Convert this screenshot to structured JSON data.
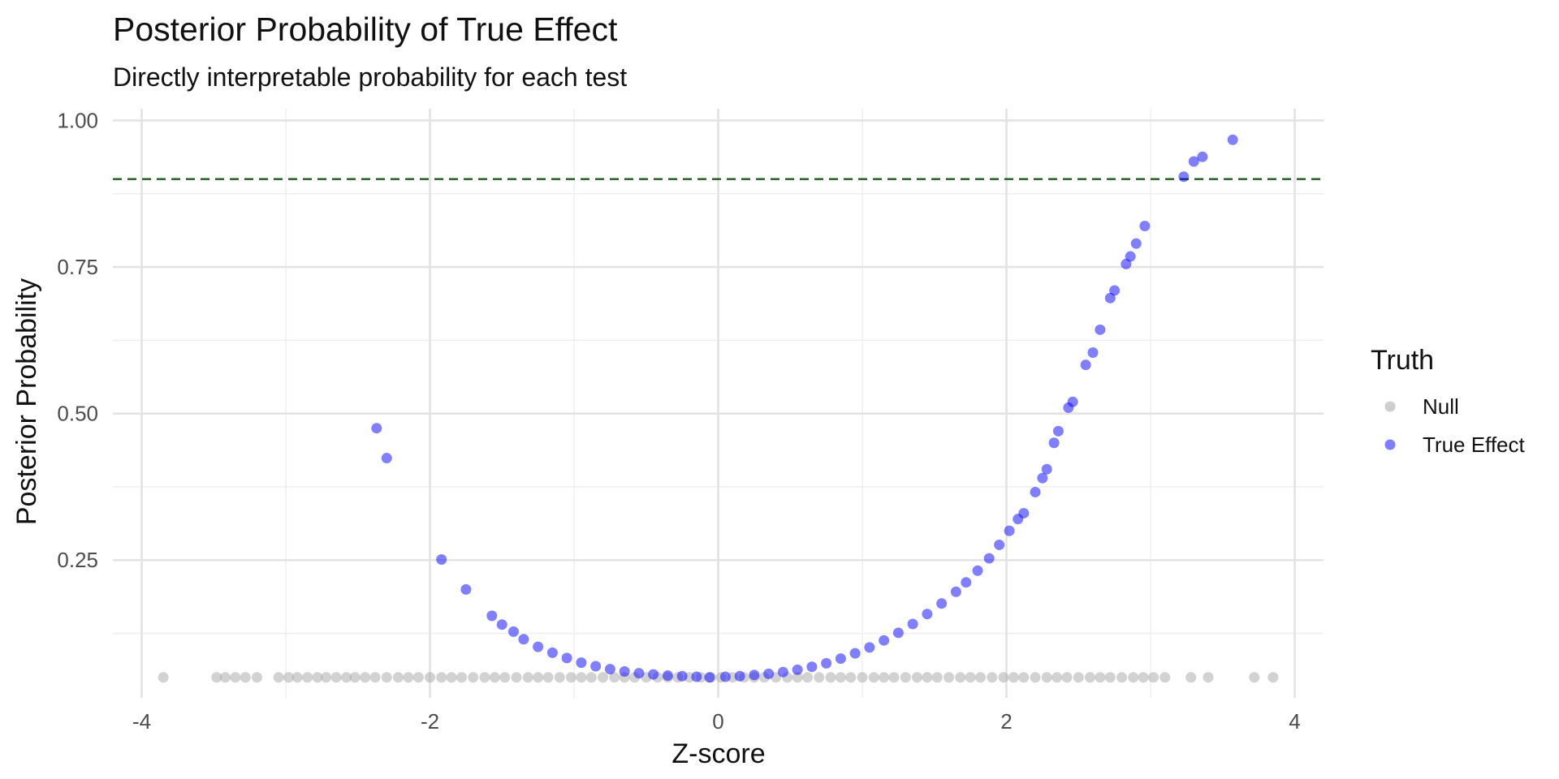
{
  "chart_data": {
    "type": "scatter",
    "title": "Posterior Probability of True Effect",
    "subtitle": "Directly interpretable probability for each test",
    "xlabel": "Z-score",
    "ylabel": "Posterior Probability",
    "xlim": [
      -4.2,
      4.2
    ],
    "ylim": [
      0.015,
      1.02
    ],
    "x_ticks": [
      -4,
      -2,
      0,
      2,
      4
    ],
    "x_tick_labels": [
      "-4",
      "-2",
      "0",
      "2",
      "4"
    ],
    "y_ticks": [
      0.25,
      0.5,
      0.75,
      1.0
    ],
    "y_tick_labels": [
      "0.25",
      "0.50",
      "0.75",
      "1.00"
    ],
    "grid": true,
    "threshold_line": {
      "y": 0.9,
      "style": "dashed",
      "color": "#1a5e1a"
    },
    "legend": {
      "title": "Truth",
      "position": "right",
      "entries": [
        {
          "label": "Null",
          "color": "#a6a6a6"
        },
        {
          "label": "True Effect",
          "color": "#0000ff"
        }
      ]
    },
    "series": [
      {
        "name": "Null",
        "color": "#a6a6a6",
        "x": [
          -3.85,
          -3.48,
          -3.42,
          -3.35,
          -3.28,
          -3.2,
          -3.05,
          -2.98,
          -2.92,
          -2.85,
          -2.78,
          -2.72,
          -2.65,
          -2.58,
          -2.52,
          -2.45,
          -2.38,
          -2.3,
          -2.22,
          -2.15,
          -2.08,
          -2.0,
          -1.92,
          -1.85,
          -1.78,
          -1.7,
          -1.62,
          -1.55,
          -1.48,
          -1.4,
          -1.32,
          -1.25,
          -1.18,
          -1.1,
          -1.02,
          -0.95,
          -0.88,
          -0.8,
          -0.72,
          -0.65,
          -0.58,
          -0.5,
          -0.42,
          -0.35,
          -0.28,
          -0.2,
          -0.12,
          -0.05,
          0.02,
          0.1,
          0.18,
          0.25,
          0.32,
          0.4,
          0.48,
          0.55,
          0.62,
          0.7,
          0.78,
          0.85,
          0.92,
          1.0,
          1.08,
          1.15,
          1.22,
          1.3,
          1.38,
          1.45,
          1.52,
          1.6,
          1.68,
          1.75,
          1.82,
          1.9,
          1.98,
          2.05,
          2.12,
          2.2,
          2.28,
          2.35,
          2.42,
          2.5,
          2.58,
          2.65,
          2.72,
          2.8,
          2.88,
          2.95,
          3.02,
          3.1,
          3.28,
          3.4,
          3.72,
          3.85
        ],
        "y": [
          0.05,
          0.05,
          0.05,
          0.05,
          0.05,
          0.05,
          0.05,
          0.05,
          0.05,
          0.05,
          0.05,
          0.05,
          0.05,
          0.05,
          0.05,
          0.05,
          0.05,
          0.05,
          0.05,
          0.05,
          0.05,
          0.05,
          0.05,
          0.05,
          0.05,
          0.05,
          0.05,
          0.05,
          0.05,
          0.05,
          0.05,
          0.05,
          0.05,
          0.05,
          0.05,
          0.05,
          0.05,
          0.05,
          0.05,
          0.05,
          0.05,
          0.05,
          0.05,
          0.05,
          0.05,
          0.05,
          0.05,
          0.05,
          0.05,
          0.05,
          0.05,
          0.05,
          0.05,
          0.05,
          0.05,
          0.05,
          0.05,
          0.05,
          0.05,
          0.05,
          0.05,
          0.05,
          0.05,
          0.05,
          0.05,
          0.05,
          0.05,
          0.05,
          0.05,
          0.05,
          0.05,
          0.05,
          0.05,
          0.05,
          0.05,
          0.05,
          0.05,
          0.05,
          0.05,
          0.05,
          0.05,
          0.05,
          0.05,
          0.05,
          0.05,
          0.05,
          0.05,
          0.05,
          0.05,
          0.05,
          0.05,
          0.05,
          0.05,
          0.05
        ]
      },
      {
        "name": "True Effect",
        "color": "#0000ff",
        "x": [
          -2.37,
          -2.3,
          -1.92,
          -1.75,
          -1.57,
          -1.5,
          -1.42,
          -1.35,
          -1.25,
          -1.15,
          -1.05,
          -0.95,
          -0.85,
          -0.75,
          -0.65,
          -0.55,
          -0.45,
          -0.35,
          -0.25,
          -0.15,
          -0.06,
          0.05,
          0.15,
          0.25,
          0.35,
          0.45,
          0.55,
          0.65,
          0.75,
          0.85,
          0.95,
          1.05,
          1.15,
          1.25,
          1.35,
          1.45,
          1.55,
          1.65,
          1.72,
          1.8,
          1.88,
          1.95,
          2.02,
          2.08,
          2.12,
          2.2,
          2.25,
          2.28,
          2.33,
          2.36,
          2.43,
          2.46,
          2.55,
          2.6,
          2.65,
          2.72,
          2.75,
          2.83,
          2.86,
          2.9,
          2.96,
          3.23,
          3.3,
          3.36,
          3.57
        ],
        "y": [
          0.475,
          0.424,
          0.251,
          0.2,
          0.155,
          0.14,
          0.128,
          0.115,
          0.102,
          0.092,
          0.083,
          0.075,
          0.069,
          0.064,
          0.06,
          0.057,
          0.055,
          0.053,
          0.052,
          0.051,
          0.05,
          0.051,
          0.052,
          0.054,
          0.056,
          0.059,
          0.063,
          0.068,
          0.074,
          0.082,
          0.091,
          0.101,
          0.113,
          0.126,
          0.141,
          0.158,
          0.176,
          0.196,
          0.212,
          0.232,
          0.253,
          0.276,
          0.3,
          0.32,
          0.33,
          0.366,
          0.39,
          0.405,
          0.45,
          0.47,
          0.51,
          0.52,
          0.583,
          0.604,
          0.643,
          0.697,
          0.71,
          0.755,
          0.768,
          0.79,
          0.82,
          0.904,
          0.93,
          0.938,
          0.967
        ]
      }
    ]
  }
}
